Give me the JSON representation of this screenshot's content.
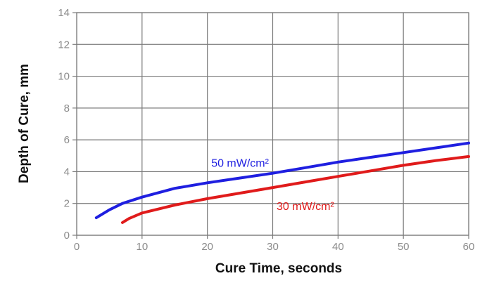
{
  "chart_data": {
    "type": "line",
    "title": "",
    "xlabel": "Cure Time, seconds",
    "ylabel": "Depth of Cure, mm",
    "xlim": [
      0,
      60
    ],
    "ylim": [
      0,
      14
    ],
    "xticks": [
      0,
      10,
      20,
      30,
      40,
      50,
      60
    ],
    "yticks": [
      0,
      2,
      4,
      6,
      8,
      10,
      12,
      14
    ],
    "grid": true,
    "legend": "none (series labeled inline on chart)",
    "series": [
      {
        "name": "50 mW/cm²",
        "color": "#1f1fe0",
        "label_at": [
          25,
          4.3
        ],
        "x": [
          3,
          5,
          7,
          10,
          15,
          20,
          25,
          30,
          35,
          40,
          45,
          50,
          55,
          60
        ],
        "y": [
          1.1,
          1.6,
          2.0,
          2.4,
          2.95,
          3.3,
          3.6,
          3.9,
          4.25,
          4.6,
          4.9,
          5.2,
          5.5,
          5.8
        ]
      },
      {
        "name": "30 mW/cm²",
        "color": "#e01b1b",
        "label_at": [
          35,
          1.6
        ],
        "x": [
          7,
          8,
          10,
          15,
          20,
          25,
          30,
          35,
          40,
          45,
          50,
          55,
          60
        ],
        "y": [
          0.8,
          1.05,
          1.4,
          1.9,
          2.3,
          2.65,
          3.0,
          3.35,
          3.7,
          4.05,
          4.4,
          4.7,
          4.95
        ]
      }
    ]
  }
}
